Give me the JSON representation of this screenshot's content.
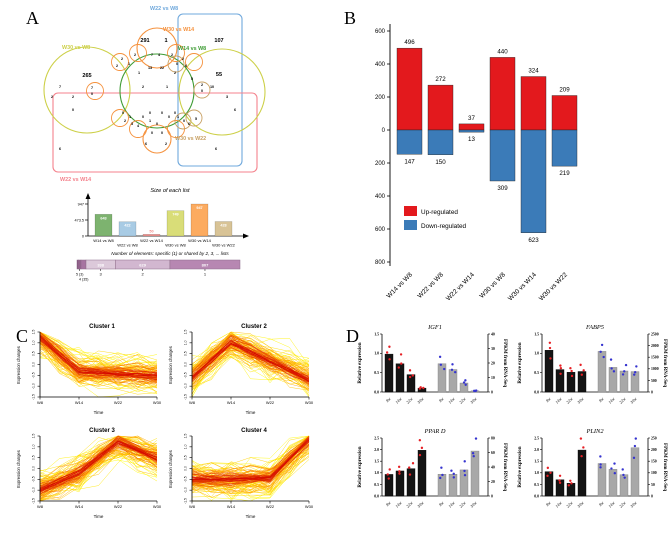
{
  "panels": {
    "a": "A",
    "b": "B",
    "c": "C",
    "d": "D"
  },
  "chart_data": [
    {
      "id": "venn",
      "type": "venn",
      "lists": [
        {
          "label": "W22 vs W8",
          "color": "#6fa8dc"
        },
        {
          "label": "W30 vs W14",
          "color": "#f5923e"
        },
        {
          "label": "W14 vs W8",
          "color": "#3f9c35"
        },
        {
          "label": "W30 vs W8",
          "color": "#cdd049"
        },
        {
          "label": "W30 vs W22",
          "color": "#c8a063"
        },
        {
          "label": "W22 vs W14",
          "color": "#f4828c"
        }
      ],
      "labels": [
        {
          "text": "W22 vs W8",
          "color": "#6fa8dc",
          "x": 124,
          "y": 6
        },
        {
          "text": "W30 vs W14",
          "color": "#f5923e",
          "x": 137,
          "y": 27
        },
        {
          "text": "W14 vs W8",
          "color": "#3f9c35",
          "x": 152,
          "y": 46
        },
        {
          "text": "W30 vs W8",
          "color": "#cdd049",
          "x": 36,
          "y": 45
        },
        {
          "text": "W30 vs W22",
          "color": "#c8a063",
          "x": 149,
          "y": 136
        },
        {
          "text": "W22 vs W14",
          "color": "#f4828c",
          "x": 34,
          "y": 177
        }
      ],
      "counts": [
        {
          "v": 291,
          "x": 119,
          "y": 38,
          "big": 1
        },
        {
          "v": 1,
          "x": 140,
          "y": 38,
          "big": 1
        },
        {
          "v": 107,
          "x": 193,
          "y": 38,
          "big": 1
        },
        {
          "v": 265,
          "x": 61,
          "y": 73,
          "big": 1
        },
        {
          "v": 55,
          "x": 193,
          "y": 72,
          "big": 1
        },
        {
          "v": 7,
          "x": 126,
          "y": 52
        },
        {
          "v": 4,
          "x": 133,
          "y": 52
        },
        {
          "v": 2,
          "x": 109,
          "y": 52
        },
        {
          "v": 2,
          "x": 96,
          "y": 56
        },
        {
          "v": 1,
          "x": 103,
          "y": 61
        },
        {
          "v": 2,
          "x": 91,
          "y": 63
        },
        {
          "v": 2,
          "x": 146,
          "y": 52
        },
        {
          "v": 2,
          "x": 157,
          "y": 56
        },
        {
          "v": 0,
          "x": 151,
          "y": 61
        },
        {
          "v": 6,
          "x": 160,
          "y": 63
        },
        {
          "v": 13,
          "x": 124,
          "y": 65
        },
        {
          "v": 22,
          "x": 136,
          "y": 65
        },
        {
          "v": 1,
          "x": 113,
          "y": 70
        },
        {
          "v": 2,
          "x": 149,
          "y": 70
        },
        {
          "v": 7,
          "x": 34,
          "y": 84
        },
        {
          "v": 7,
          "x": 66,
          "y": 85
        },
        {
          "v": 0,
          "x": 66,
          "y": 91
        },
        {
          "v": 2,
          "x": 26,
          "y": 94
        },
        {
          "v": 2,
          "x": 47,
          "y": 94
        },
        {
          "v": 0,
          "x": 47,
          "y": 107
        },
        {
          "v": 2,
          "x": 117,
          "y": 84
        },
        {
          "v": 1,
          "x": 141,
          "y": 84
        },
        {
          "v": 5,
          "x": 166,
          "y": 76
        },
        {
          "v": 2,
          "x": 176,
          "y": 82
        },
        {
          "v": 0,
          "x": 176,
          "y": 88
        },
        {
          "v": 10,
          "x": 186,
          "y": 84
        },
        {
          "v": 3,
          "x": 201,
          "y": 94
        },
        {
          "v": 6,
          "x": 209,
          "y": 107
        },
        {
          "v": 0,
          "x": 97,
          "y": 110
        },
        {
          "v": 1,
          "x": 104,
          "y": 114
        },
        {
          "v": 2,
          "x": 99,
          "y": 118
        },
        {
          "v": 3,
          "x": 106,
          "y": 121
        },
        {
          "v": 4,
          "x": 112,
          "y": 123
        },
        {
          "v": 0,
          "x": 124,
          "y": 110
        },
        {
          "v": 0,
          "x": 117,
          "y": 114
        },
        {
          "v": 1,
          "x": 124,
          "y": 118
        },
        {
          "v": 0,
          "x": 131,
          "y": 121
        },
        {
          "v": 0,
          "x": 136,
          "y": 110
        },
        {
          "v": 0,
          "x": 143,
          "y": 114
        },
        {
          "v": 0,
          "x": 149,
          "y": 110
        },
        {
          "v": 1,
          "x": 152,
          "y": 114
        },
        {
          "v": 0,
          "x": 158,
          "y": 118
        },
        {
          "v": 6,
          "x": 163,
          "y": 121
        },
        {
          "v": 5,
          "x": 170,
          "y": 116
        },
        {
          "v": 0,
          "x": 126,
          "y": 130
        },
        {
          "v": 0,
          "x": 136,
          "y": 130
        },
        {
          "v": 6,
          "x": 120,
          "y": 141
        },
        {
          "v": 2,
          "x": 140,
          "y": 141
        },
        {
          "v": 6,
          "x": 34,
          "y": 146
        },
        {
          "v": 6,
          "x": 190,
          "y": 146
        }
      ]
    },
    {
      "id": "size_of_each_list",
      "type": "bar",
      "title": "Size of each list",
      "categories": [
        "W14 vs W8",
        "W22 vs W8",
        "W22 vs W14",
        "W30 vs W8",
        "W30 vs W14",
        "W30 vs W22"
      ],
      "values": [
        643,
        422,
        50,
        749,
        947,
        428
      ],
      "colors": [
        "#7db36f",
        "#a8cbe4",
        "#f0908d",
        "#d9dd78",
        "#fcab60",
        "#d8c396"
      ],
      "ylim": [
        0,
        947
      ],
      "yticks": [
        "0",
        "473.5",
        "947"
      ]
    },
    {
      "id": "shared_elements",
      "type": "stacked-bar",
      "title": "Number of elements: specific (1) or shared by 2, 3, ... lists",
      "segments": [
        {
          "label": "6",
          "value": 1
        },
        {
          "label": "5",
          "value": 3
        },
        {
          "label": "4",
          "value": 35
        },
        {
          "label": "3",
          "value": 338
        },
        {
          "label": "2",
          "value": 629
        },
        {
          "label": "1",
          "value": 807
        }
      ],
      "callouts": [
        "5 (3)",
        "4 (35)"
      ],
      "colors": [
        "#86537f",
        "#96628f",
        "#a774a1",
        "#dcc9da",
        "#d2b7d0",
        "#b787b2"
      ]
    },
    {
      "id": "deg_up_down",
      "type": "bar-updown",
      "categories": [
        "W14 vs W8",
        "W22 vs W8",
        "W22 vs W14",
        "W30 vs W8",
        "W30 vs W14",
        "W30 vs W22"
      ],
      "series": [
        {
          "name": "Up-regulated",
          "color": "#e3191d",
          "values": [
            496,
            272,
            37,
            440,
            324,
            209
          ]
        },
        {
          "name": "Down-regulated",
          "color": "#3b7bb8",
          "values": [
            147,
            150,
            13,
            309,
            623,
            219
          ]
        }
      ],
      "yticks_up": [
        600,
        400,
        200,
        0
      ],
      "yticks_down": [
        200,
        400,
        600,
        800
      ]
    },
    {
      "id": "cluster1",
      "type": "line-ensemble",
      "title": "Cluster 1",
      "x": [
        "W8",
        "W14",
        "W22",
        "W30"
      ],
      "xlabel": "Time",
      "ylabel": "Expression changes",
      "ylim": [
        -1.5,
        1.5
      ],
      "core": [
        1.25,
        -0.3,
        -0.45,
        -0.55
      ],
      "n_lines": 115,
      "seed": 3
    },
    {
      "id": "cluster2",
      "type": "line-ensemble",
      "title": "Cluster 2",
      "x": [
        "W8",
        "W14",
        "W22",
        "W30"
      ],
      "xlabel": "Time",
      "ylabel": "Expression changes",
      "ylim": [
        -1.5,
        1.5
      ],
      "core": [
        -0.6,
        1.05,
        0.15,
        -0.7
      ],
      "n_lines": 115,
      "seed": 7
    },
    {
      "id": "cluster3",
      "type": "line-ensemble",
      "title": "Cluster 3",
      "x": [
        "W8",
        "W14",
        "W22",
        "W30"
      ],
      "xlabel": "Time",
      "ylabel": "Expression changes",
      "ylim": [
        -1.5,
        1.5
      ],
      "core": [
        -1.0,
        -0.2,
        1.25,
        0.45
      ],
      "n_lines": 115,
      "seed": 13
    },
    {
      "id": "cluster4",
      "type": "line-ensemble",
      "title": "Cluster 4",
      "x": [
        "W8",
        "W14",
        "W22",
        "W30"
      ],
      "xlabel": "Time",
      "ylabel": "Expression changes",
      "ylim": [
        -1.5,
        1.5
      ],
      "core": [
        -0.5,
        -0.5,
        -0.45,
        1.3
      ],
      "n_lines": 115,
      "seed": 21
    },
    {
      "id": "IGF1",
      "type": "qpcr-bar",
      "title": "IGF1",
      "categories": [
        "8w",
        "14w",
        "22w",
        "30w"
      ],
      "left_axis": {
        "label": "Relative expression",
        "ticks": [
          "0.0",
          "0.5",
          "1.0",
          "1.5"
        ],
        "max": 1.5
      },
      "right_axis": {
        "label": "FPKM from RNA-Seq",
        "ticks": [
          "0",
          "10",
          "20",
          "30",
          "40"
        ],
        "max": 40
      },
      "qpcr": [
        0.98,
        0.73,
        0.45,
        0.1
      ],
      "fpkm": [
        19.5,
        15.5,
        6.2,
        0.8
      ],
      "seed": 5
    },
    {
      "id": "FABP5",
      "type": "qpcr-bar",
      "title": "FABP5",
      "categories": [
        "8w",
        "14w",
        "22w",
        "30w"
      ],
      "left_axis": {
        "label": "Relative expression",
        "ticks": [
          "0.0",
          "0.5",
          "1.0",
          "1.5"
        ],
        "max": 1.5
      },
      "right_axis": {
        "label": "FPKM from RNA-Seq",
        "ticks": [
          "0",
          "500",
          "1000",
          "1500",
          "2000",
          "2500"
        ],
        "max": 2500
      },
      "qpcr": [
        1.08,
        0.58,
        0.51,
        0.53
      ],
      "fpkm": [
        1750,
        1060,
        905,
        880
      ],
      "seed": 9
    },
    {
      "id": "PPARD",
      "type": "qpcr-bar",
      "title": "PPAR D",
      "categories": [
        "8w",
        "14w",
        "22w",
        "30w"
      ],
      "left_axis": {
        "label": "Relative expression",
        "ticks": [
          "0.0",
          "0.5",
          "1.0",
          "1.5",
          "2.0",
          "2.5"
        ],
        "max": 2.5
      },
      "right_axis": {
        "label": "FPKM from RNA-Seq",
        "ticks": [
          "0",
          "20",
          "40",
          "60",
          "80"
        ],
        "max": 80
      },
      "qpcr": [
        0.93,
        1.08,
        1.18,
        1.97
      ],
      "fpkm": [
        30,
        30,
        36,
        62
      ],
      "seed": 15
    },
    {
      "id": "PLIN2",
      "type": "qpcr-bar",
      "title": "PLIN2",
      "categories": [
        "8w",
        "14w",
        "22w",
        "30w"
      ],
      "left_axis": {
        "label": "Relative expression",
        "ticks": [
          "0.0",
          "0.5",
          "1.0",
          "1.5",
          "2.0",
          "2.5"
        ],
        "max": 2.5
      },
      "right_axis": {
        "label": "FPKM from RNA-Seq",
        "ticks": [
          "0",
          "50",
          "100",
          "150",
          "200",
          "250"
        ],
        "max": 250
      },
      "qpcr": [
        1.05,
        0.7,
        0.55,
        1.98
      ],
      "fpkm": [
        140,
        115,
        92,
        208
      ],
      "seed": 27
    }
  ]
}
